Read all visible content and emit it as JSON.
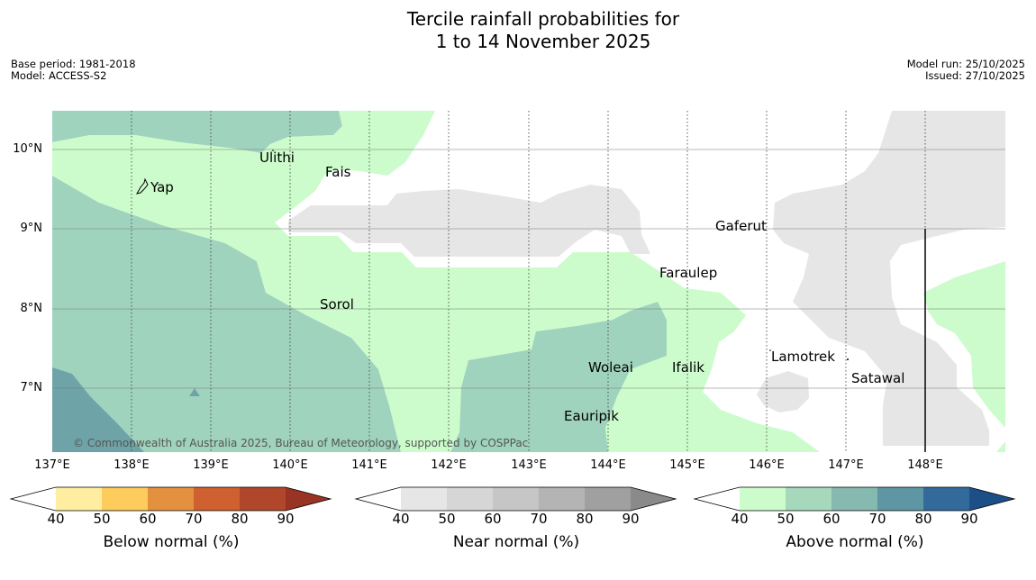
{
  "title": {
    "line1": "Tercile rainfall probabilities for",
    "line2": "1 to 14 November 2025"
  },
  "meta_left": {
    "base_period": "Base period: 1981-2018",
    "model": "Model: ACCESS-S2"
  },
  "meta_right": {
    "model_run": "Model run: 25/10/2025",
    "issued": "Issued: 27/10/2025"
  },
  "map": {
    "lon_labels": [
      "137°E",
      "138°E",
      "139°E",
      "140°E",
      "141°E",
      "142°E",
      "143°E",
      "144°E",
      "145°E",
      "146°E",
      "147°E",
      "148°E"
    ],
    "lat_labels": [
      "10°N",
      "9°N",
      "8°N",
      "7°N"
    ],
    "places": {
      "ulithi": "Ulithi",
      "fais": "Fais",
      "yap": "Yap",
      "gaferut": "Gaferut",
      "faraulep": "Faraulep",
      "sorol": "Sorol",
      "lamotrek": "Lamotrek",
      "satawal": "Satawal",
      "woleai": "Woleai",
      "ifalik": "Ifalik",
      "eauripik": "Eauripik"
    },
    "credit": "© Commonwealth of Australia 2025, Bureau of Meteorology, supported by COSPPac",
    "colors": {
      "above_50": "#ccfccc",
      "above_60": "#a0d3bd",
      "above_70": "#6ea4a8",
      "near_50": "#e6e6e6"
    }
  },
  "colorbars": [
    {
      "label": "Below normal (%)",
      "ticks": [
        "40",
        "50",
        "60",
        "70",
        "80",
        "90"
      ],
      "colors": [
        "#ffeda0",
        "#fecc5c",
        "#e3913f",
        "#cf6030",
        "#b0472a",
        "#993424"
      ]
    },
    {
      "label": "Near normal (%)",
      "ticks": [
        "40",
        "50",
        "60",
        "70",
        "80",
        "90"
      ],
      "colors": [
        "#e6e6e6",
        "#d6d6d6",
        "#c6c6c6",
        "#b4b4b4",
        "#a0a0a0",
        "#8a8a8a"
      ]
    },
    {
      "label": "Above normal (%)",
      "ticks": [
        "40",
        "50",
        "60",
        "70",
        "80",
        "90"
      ],
      "colors": [
        "#ccfccc",
        "#a6d9bb",
        "#86b9af",
        "#5e96a3",
        "#326a9c",
        "#1d4f87"
      ]
    }
  ]
}
